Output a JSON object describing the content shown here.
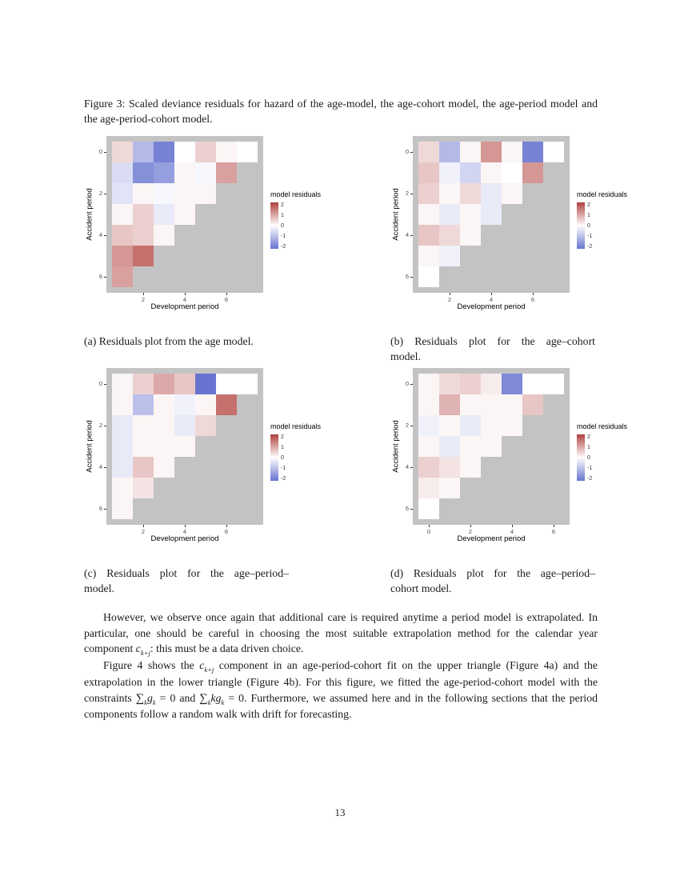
{
  "page": {
    "number": "13"
  },
  "figure": {
    "caption": "Figure 3:  Scaled deviance residuals for hazard of the age-model, the age-cohort model, the age-period model and the age-period-cohort model.",
    "subcaptions": [
      [
        "(a) Residuals plot from the age model."
      ],
      [
        "(b) Residuals plot for the age–cohort",
        "model."
      ],
      [
        "(c) Residuals plot for the age–period–",
        "model."
      ],
      [
        "(d) Residuals plot for the age–period–",
        "cohort model."
      ]
    ]
  },
  "chart_data": [
    {
      "type": "heatmap",
      "name": "age model residuals",
      "xlabel": "Development period",
      "ylabel": "Accident period",
      "x_ticks": [
        {
          "label": "2",
          "col": 1
        },
        {
          "label": "4",
          "col": 3
        },
        {
          "label": "6",
          "col": 5
        }
      ],
      "y_ticks": [
        {
          "label": "0",
          "row": 0
        },
        {
          "label": "2",
          "row": 2
        },
        {
          "label": "4",
          "row": 4
        },
        {
          "label": "6",
          "row": 6
        }
      ],
      "legend_title": "model residuals",
      "legend_ticks": [
        "2",
        "1",
        "0",
        "-1",
        "-2"
      ],
      "value_range": [
        -2,
        2
      ],
      "color_high": "#b0413e",
      "color_low": "#6874d0",
      "panel_bg": "#c4c3c3",
      "rows": [
        [
          0.4,
          -1.0,
          -1.8,
          0.0,
          0.5,
          0.1,
          0.0
        ],
        [
          -0.5,
          -1.6,
          -1.4,
          0.1,
          -0.1,
          1.0,
          null
        ],
        [
          -0.4,
          0.1,
          -0.1,
          0.1,
          0.1,
          null,
          null
        ],
        [
          0.1,
          0.5,
          -0.3,
          0.1,
          null,
          null,
          null
        ],
        [
          0.6,
          0.5,
          0.1,
          null,
          null,
          null,
          null
        ],
        [
          1.1,
          1.5,
          null,
          null,
          null,
          null,
          null
        ],
        [
          1.0,
          null,
          null,
          null,
          null,
          null,
          null
        ]
      ]
    },
    {
      "type": "heatmap",
      "name": "age-cohort model residuals",
      "xlabel": "Development period",
      "ylabel": "Accident period",
      "x_ticks": [
        {
          "label": "2",
          "col": 1
        },
        {
          "label": "4",
          "col": 3
        },
        {
          "label": "6",
          "col": 5
        }
      ],
      "y_ticks": [
        {
          "label": "0",
          "row": 0
        },
        {
          "label": "2",
          "row": 2
        },
        {
          "label": "4",
          "row": 4
        },
        {
          "label": "6",
          "row": 6
        }
      ],
      "legend_title": "model residuals",
      "legend_ticks": [
        "2",
        "1",
        "0",
        "-1",
        "-2"
      ],
      "value_range": [
        -2,
        2
      ],
      "color_high": "#b0413e",
      "color_low": "#6874d0",
      "panel_bg": "#c4c3c3",
      "rows": [
        [
          0.4,
          -1.0,
          0.1,
          1.1,
          0.1,
          -1.8,
          0.0
        ],
        [
          0.6,
          -0.2,
          -0.6,
          0.1,
          0.0,
          1.1,
          null
        ],
        [
          0.5,
          0.1,
          0.4,
          -0.3,
          0.1,
          null,
          null
        ],
        [
          0.1,
          -0.3,
          0.1,
          -0.3,
          null,
          null,
          null
        ],
        [
          0.6,
          0.4,
          0.1,
          null,
          null,
          null,
          null
        ],
        [
          0.1,
          -0.2,
          null,
          null,
          null,
          null,
          null
        ],
        [
          0.0,
          null,
          null,
          null,
          null,
          null,
          null
        ]
      ]
    },
    {
      "type": "heatmap",
      "name": "age-period model residuals",
      "xlabel": "Development period",
      "ylabel": "Accident period",
      "x_ticks": [
        {
          "label": "2",
          "col": 1
        },
        {
          "label": "4",
          "col": 3
        },
        {
          "label": "6",
          "col": 5
        }
      ],
      "y_ticks": [
        {
          "label": "0",
          "row": 0
        },
        {
          "label": "2",
          "row": 2
        },
        {
          "label": "4",
          "row": 4
        },
        {
          "label": "6",
          "row": 6
        }
      ],
      "legend_title": "model residuals",
      "legend_ticks": [
        "2",
        "1",
        "0",
        "-1",
        "-2"
      ],
      "value_range": [
        -2,
        2
      ],
      "color_high": "#b0413e",
      "color_low": "#6874d0",
      "panel_bg": "#c4c3c3",
      "rows": [
        [
          0.1,
          0.5,
          0.9,
          0.6,
          -2.0,
          0.0,
          0.0
        ],
        [
          0.1,
          -0.9,
          0.1,
          -0.2,
          0.1,
          1.5,
          null
        ],
        [
          -0.3,
          0.1,
          0.1,
          -0.3,
          0.4,
          null,
          null
        ],
        [
          -0.3,
          0.1,
          0.1,
          0.1,
          null,
          null,
          null
        ],
        [
          -0.3,
          0.6,
          0.1,
          null,
          null,
          null,
          null
        ],
        [
          0.1,
          0.3,
          null,
          null,
          null,
          null,
          null
        ],
        [
          0.1,
          null,
          null,
          null,
          null,
          null,
          null
        ]
      ]
    },
    {
      "type": "heatmap",
      "name": "age-period-cohort model residuals",
      "xlabel": "Development period",
      "ylabel": "Accident period",
      "x_ticks": [
        {
          "label": "0",
          "col": 0
        },
        {
          "label": "2",
          "col": 2
        },
        {
          "label": "4",
          "col": 4
        },
        {
          "label": "6",
          "col": 6
        }
      ],
      "y_ticks": [
        {
          "label": "0",
          "row": 0
        },
        {
          "label": "2",
          "row": 2
        },
        {
          "label": "4",
          "row": 4
        },
        {
          "label": "6",
          "row": 6
        }
      ],
      "legend_title": "model residuals",
      "legend_ticks": [
        "2",
        "1",
        "0",
        "-1",
        "-2"
      ],
      "value_range": [
        -2,
        2
      ],
      "color_high": "#b0413e",
      "color_low": "#6874d0",
      "panel_bg": "#c4c3c3",
      "rows": [
        [
          0.1,
          0.4,
          0.5,
          0.2,
          -1.7,
          0.0,
          0.0
        ],
        [
          0.1,
          0.8,
          0.1,
          0.1,
          0.1,
          0.6,
          null
        ],
        [
          -0.2,
          0.1,
          -0.3,
          0.1,
          0.1,
          null,
          null
        ],
        [
          0.1,
          -0.3,
          0.1,
          0.1,
          null,
          null,
          null
        ],
        [
          0.5,
          0.3,
          0.1,
          null,
          null,
          null,
          null
        ],
        [
          0.2,
          0.1,
          null,
          null,
          null,
          null,
          null
        ],
        [
          0.0,
          null,
          null,
          null,
          null,
          null,
          null
        ]
      ]
    }
  ],
  "body": {
    "paragraphs": [
      [
        {
          "t": "However, we observe once again that additional care is required anytime a period model is extrapolated. In particular, one should be careful in choosing the most suitable extrapolation method for the calendar year component "
        },
        {
          "i": "c"
        },
        {
          "s": "k+j"
        },
        {
          "t": ": this must be a data driven choice."
        }
      ],
      [
        {
          "t": "Figure 4 shows the "
        },
        {
          "i": "c"
        },
        {
          "s": "k+j"
        },
        {
          "t": " component in an age-period-cohort fit on the upper triangle (Figure 4a) and the extrapolation in the lower triangle (Figure 4b). For this figure, we fitted the age-period-cohort model with the constraints "
        },
        {
          "sum": "k"
        },
        {
          "i": "g"
        },
        {
          "s": "k"
        },
        {
          "t": " = 0 and "
        },
        {
          "sum": "k"
        },
        {
          "i": "kg"
        },
        {
          "s": "k"
        },
        {
          "t": " = 0. Furthermore, we assumed here and in the following sections that the period components follow a random walk with drift for forecasting."
        }
      ]
    ]
  }
}
